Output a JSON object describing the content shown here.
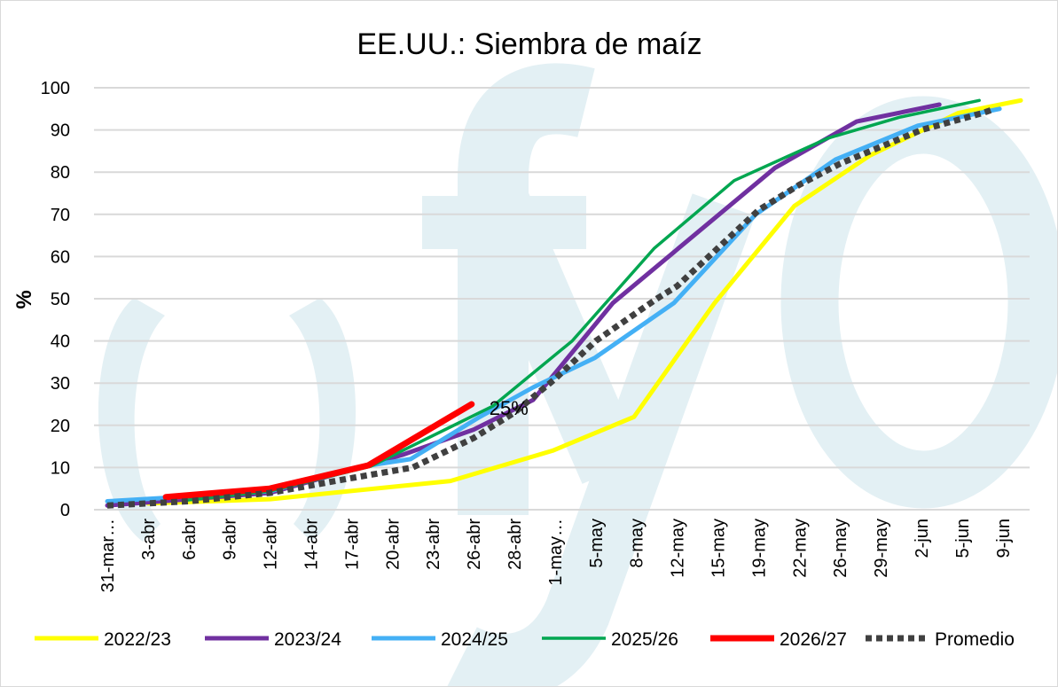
{
  "chart_data": {
    "type": "line",
    "title": "EE.UU.: Siembra de maíz",
    "xlabel": "",
    "ylabel": "%",
    "ylim": [
      0,
      100
    ],
    "yticks": [
      "0",
      "10",
      "20",
      "30",
      "40",
      "50",
      "60",
      "70",
      "80",
      "90",
      "100"
    ],
    "grid": true,
    "legend_position": "bottom",
    "categories": [
      "31-mar…",
      "3-abr",
      "6-abr",
      "9-abr",
      "12-abr",
      "14-abr",
      "17-abr",
      "20-abr",
      "23-abr",
      "26-abr",
      "28-abr",
      "1-may…",
      "5-may",
      "8-may",
      "12-may",
      "15-may",
      "19-may",
      "22-may",
      "26-may",
      "29-may",
      "2-jun",
      "5-jun",
      "9-jun"
    ],
    "x_note": "x values are positions on the category axis (0 = first category)",
    "series": [
      {
        "name": "2022/23",
        "color": "#ffff00",
        "width": 5,
        "dash": false,
        "points": [
          [
            1,
            1.5
          ],
          [
            4,
            2.5
          ],
          [
            8.43,
            6.8
          ],
          [
            10.94,
            14
          ],
          [
            12.94,
            22
          ],
          [
            14.92,
            49
          ],
          [
            16.88,
            72
          ],
          [
            18.74,
            84
          ],
          [
            20.9,
            94
          ],
          [
            22.44,
            97
          ]
        ]
      },
      {
        "name": "2023/24",
        "color": "#7030a0",
        "width": 5,
        "dash": false,
        "points": [
          [
            0,
            1
          ],
          [
            4,
            4
          ],
          [
            6,
            9.5
          ],
          [
            7.25,
            13
          ],
          [
            9,
            19
          ],
          [
            10.46,
            26
          ],
          [
            12.42,
            49
          ],
          [
            16.4,
            81
          ],
          [
            18.41,
            92
          ],
          [
            20.44,
            96
          ]
        ]
      },
      {
        "name": "2024/25",
        "color": "#44b0f5",
        "width": 5,
        "dash": false,
        "points": [
          [
            0,
            2
          ],
          [
            1.39,
            2.8
          ],
          [
            4,
            4.4
          ],
          [
            6.1,
            10
          ],
          [
            7.45,
            12
          ],
          [
            9.15,
            22
          ],
          [
            10.46,
            29
          ],
          [
            11.98,
            36
          ],
          [
            13.92,
            49
          ],
          [
            15.93,
            70
          ],
          [
            17.89,
            83
          ],
          [
            19.91,
            91
          ],
          [
            21.92,
            95
          ]
        ]
      },
      {
        "name": "2025/26",
        "color": "#00a650",
        "width": 3.5,
        "dash": false,
        "points": [
          [
            1.96,
            2.3
          ],
          [
            3.99,
            4.4
          ],
          [
            6.47,
            10.3
          ],
          [
            9.48,
            24.6
          ],
          [
            11.42,
            40
          ],
          [
            13.44,
            62
          ],
          [
            15.4,
            78
          ],
          [
            17.69,
            88
          ],
          [
            19.46,
            93
          ],
          [
            21.42,
            97
          ]
        ]
      },
      {
        "name": "2026/27",
        "color": "#ff0000",
        "width": 7,
        "dash": false,
        "points": [
          [
            1.44,
            3
          ],
          [
            3.99,
            5
          ],
          [
            6.41,
            10.5
          ],
          [
            8.95,
            25
          ]
        ]
      },
      {
        "name": "Promedio",
        "color": "#404040",
        "width": 7,
        "dash": true,
        "points": [
          [
            0,
            1
          ],
          [
            2,
            2
          ],
          [
            4,
            4
          ],
          [
            6,
            7.5
          ],
          [
            7.5,
            10
          ],
          [
            9,
            17
          ],
          [
            10,
            23
          ],
          [
            11,
            31
          ],
          [
            12,
            40
          ],
          [
            13.5,
            50
          ],
          [
            14,
            53
          ],
          [
            16,
            71
          ],
          [
            17,
            77
          ],
          [
            18,
            82
          ],
          [
            19,
            86
          ],
          [
            20,
            90
          ],
          [
            21.5,
            94
          ],
          [
            21.8,
            95
          ]
        ]
      }
    ],
    "annotations": [
      {
        "text": "25%",
        "series": "2026/27",
        "x": 8.95,
        "y": 25
      }
    ]
  },
  "watermark": "fyo"
}
